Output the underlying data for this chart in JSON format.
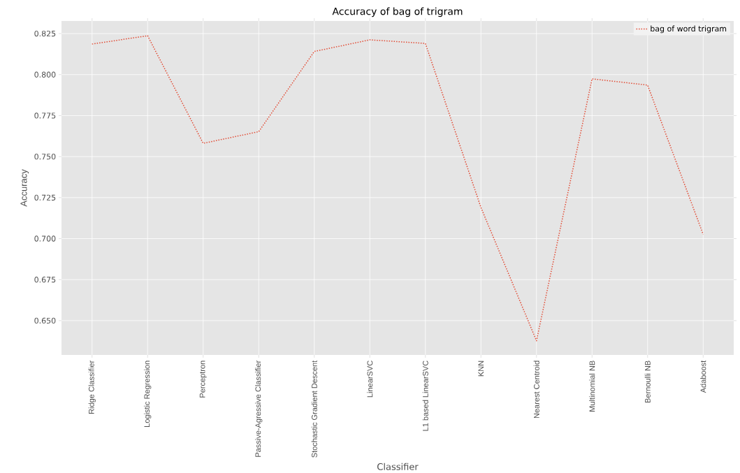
{
  "chart_data": {
    "type": "line",
    "title": "Accuracy of bag of trigram",
    "xlabel": "Classifier",
    "ylabel": "Accuracy",
    "categories": [
      "Ridge Classifier",
      "Logistic Regression",
      "Perceptron",
      "Passive-Agressive Classifier",
      "Stochastic Gradient Descent",
      "LinearSVC",
      "L1 based LinearSVC",
      "KNN",
      "Nearest Centroid",
      "Multinomial NB",
      "Bernoulli NB",
      "Adaboost"
    ],
    "series": [
      {
        "name": "bag of word trigram",
        "color": "#e24a33",
        "line_style": "dotted",
        "values": [
          0.8186,
          0.8237,
          0.7581,
          0.7652,
          0.8141,
          0.8212,
          0.819,
          0.719,
          0.6377,
          0.7974,
          0.7936,
          0.7026
        ]
      }
    ],
    "ylim": [
      0.6291,
      0.8327
    ],
    "yticks": [
      {
        "value": 0.65,
        "label": "0.650"
      },
      {
        "value": 0.675,
        "label": "0.675"
      },
      {
        "value": 0.7,
        "label": "0.700"
      },
      {
        "value": 0.725,
        "label": "0.725"
      },
      {
        "value": 0.75,
        "label": "0.750"
      },
      {
        "value": 0.775,
        "label": "0.775"
      },
      {
        "value": 0.8,
        "label": "0.800"
      },
      {
        "value": 0.825,
        "label": "0.825"
      }
    ],
    "grid": true,
    "legend": "top right",
    "marker": "none"
  }
}
